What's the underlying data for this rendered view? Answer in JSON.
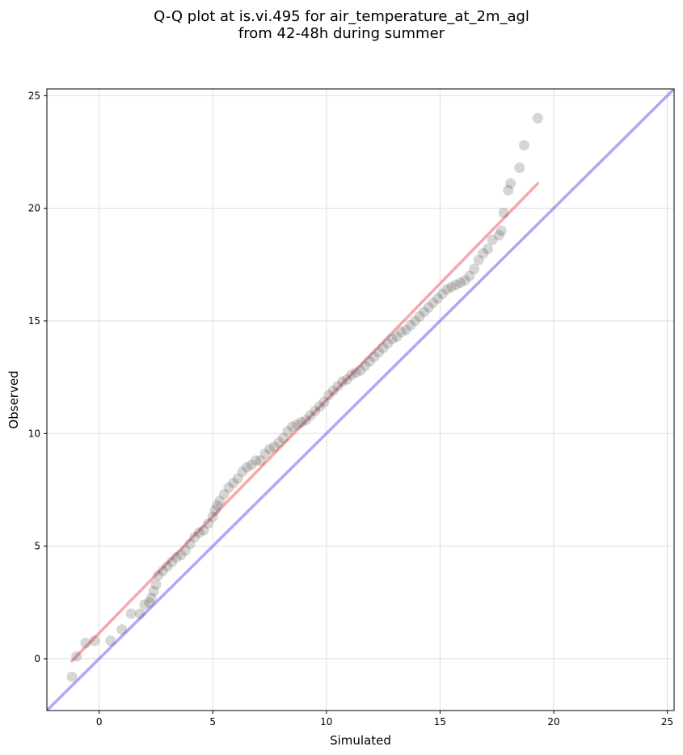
{
  "chart_data": {
    "type": "scatter",
    "title": "Q-Q plot at is.vi.495 for air_temperature_at_2m_agl\nfrom 42-48h during summer",
    "xlabel": "Simulated",
    "ylabel": "Observed",
    "xlim": [
      -2.3,
      25.3
    ],
    "ylim": [
      -2.3,
      25.3
    ],
    "xticks": [
      0,
      5,
      10,
      15,
      20,
      25
    ],
    "yticks": [
      0,
      5,
      10,
      15,
      20,
      25
    ],
    "grid": true,
    "legend": "none",
    "colors": {
      "points": "#333333",
      "fit_line": "#f06060",
      "identity_line": "#5555ee"
    },
    "series": [
      {
        "kind": "points",
        "x": [
          -1.2,
          -1.0,
          -0.6,
          -0.2,
          0.5,
          1.0,
          1.4,
          1.8,
          2.0,
          2.2,
          2.3,
          2.4,
          2.5,
          2.6,
          2.8,
          3.0,
          3.2,
          3.4,
          3.6,
          3.8,
          4.0,
          4.2,
          4.4,
          4.6,
          4.8,
          5.0,
          5.1,
          5.2,
          5.3,
          5.5,
          5.7,
          5.9,
          6.1,
          6.3,
          6.5,
          6.7,
          6.9,
          7.1,
          7.3,
          7.5,
          7.7,
          7.9,
          8.1,
          8.3,
          8.5,
          8.7,
          8.9,
          9.1,
          9.3,
          9.5,
          9.7,
          9.9,
          10.1,
          10.3,
          10.5,
          10.7,
          10.9,
          11.1,
          11.3,
          11.5,
          11.7,
          11.9,
          12.1,
          12.3,
          12.5,
          12.7,
          12.9,
          13.1,
          13.3,
          13.5,
          13.7,
          13.9,
          14.1,
          14.3,
          14.5,
          14.7,
          14.9,
          15.1,
          15.3,
          15.5,
          15.7,
          15.9,
          16.1,
          16.3,
          16.5,
          16.7,
          16.9,
          17.1,
          17.3,
          17.6,
          17.7,
          17.8,
          18.0,
          18.1,
          18.5,
          18.7,
          19.3
        ],
        "y": [
          -0.8,
          0.1,
          0.7,
          0.8,
          0.8,
          1.3,
          2.0,
          2.0,
          2.4,
          2.5,
          2.7,
          3.0,
          3.3,
          3.7,
          3.9,
          4.1,
          4.3,
          4.5,
          4.6,
          4.8,
          5.1,
          5.4,
          5.6,
          5.7,
          6.0,
          6.3,
          6.6,
          6.8,
          7.0,
          7.3,
          7.6,
          7.8,
          8.0,
          8.3,
          8.5,
          8.6,
          8.8,
          8.8,
          9.1,
          9.3,
          9.4,
          9.6,
          9.8,
          10.1,
          10.3,
          10.4,
          10.5,
          10.6,
          10.8,
          11.0,
          11.2,
          11.4,
          11.7,
          11.9,
          12.1,
          12.3,
          12.4,
          12.6,
          12.7,
          12.8,
          13.0,
          13.2,
          13.4,
          13.6,
          13.8,
          14.0,
          14.2,
          14.3,
          14.5,
          14.6,
          14.8,
          15.0,
          15.2,
          15.4,
          15.6,
          15.8,
          16.0,
          16.2,
          16.4,
          16.5,
          16.6,
          16.7,
          16.8,
          17.0,
          17.3,
          17.7,
          18.0,
          18.2,
          18.6,
          18.8,
          19.0,
          19.8,
          20.8,
          21.1,
          21.8,
          22.8,
          24.0
        ]
      },
      {
        "kind": "fit-line",
        "x": [
          -1.2,
          19.3
        ],
        "y": [
          -0.1,
          21.1
        ]
      },
      {
        "kind": "identity-line",
        "x": [
          -2.3,
          25.3
        ],
        "y": [
          -2.3,
          25.3
        ]
      }
    ]
  }
}
